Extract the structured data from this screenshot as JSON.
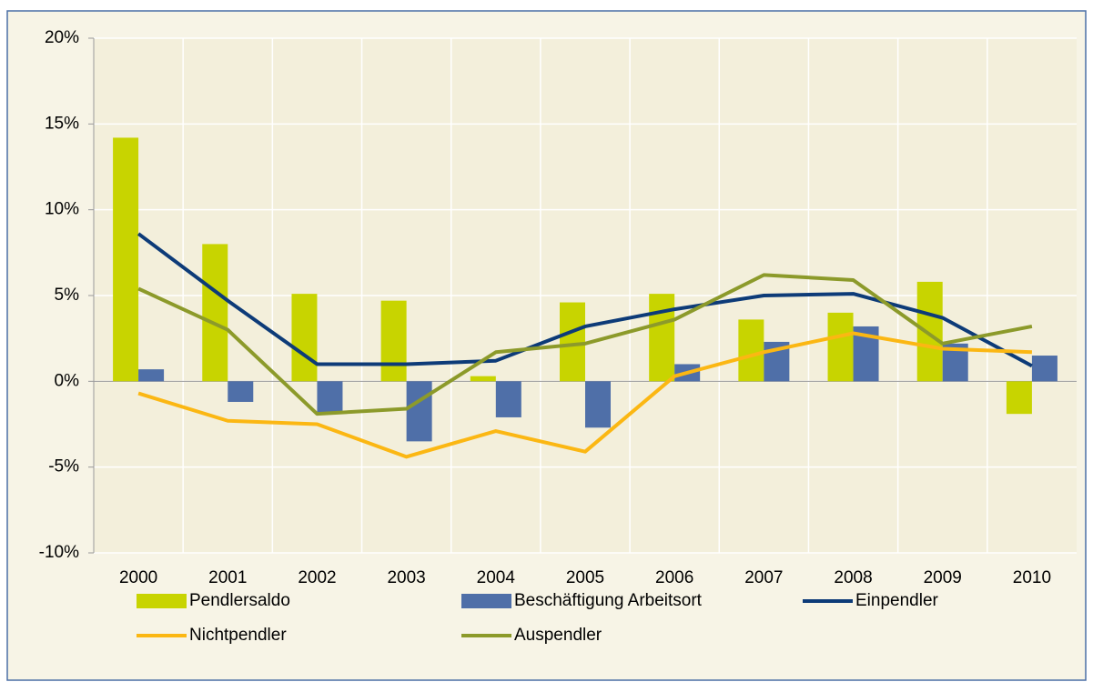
{
  "chart_data": {
    "type": "combo",
    "categories": [
      "2000",
      "2001",
      "2002",
      "2003",
      "2004",
      "2005",
      "2006",
      "2007",
      "2008",
      "2009",
      "2010"
    ],
    "series": [
      {
        "name": "Pendlersaldo",
        "type": "bar",
        "color": "#c8d400",
        "values": [
          14.2,
          8.0,
          5.1,
          4.7,
          0.3,
          4.6,
          5.1,
          3.6,
          4.0,
          5.8,
          -1.9
        ]
      },
      {
        "name": "Beschäftigung Arbeitsort",
        "type": "bar",
        "color": "#4f6fa8",
        "values": [
          0.7,
          -1.2,
          -1.8,
          -3.5,
          -2.1,
          -2.7,
          1.0,
          2.3,
          3.2,
          2.2,
          1.5
        ]
      },
      {
        "name": "Einpendler",
        "type": "line",
        "color": "#0d3b78",
        "values": [
          8.6,
          4.7,
          1.0,
          1.0,
          1.2,
          3.2,
          4.2,
          5.0,
          5.1,
          3.7,
          0.9
        ]
      },
      {
        "name": "Nichtpendler",
        "type": "line",
        "color": "#fbb713",
        "values": [
          -0.7,
          -2.3,
          -2.5,
          -4.4,
          -2.9,
          -4.1,
          0.3,
          1.7,
          2.8,
          1.9,
          1.7
        ]
      },
      {
        "name": "Auspendler",
        "type": "line",
        "color": "#8c9a2a",
        "values": [
          5.4,
          3.0,
          -1.9,
          -1.6,
          1.7,
          2.2,
          3.6,
          6.2,
          5.9,
          2.2,
          3.2
        ]
      }
    ],
    "ylim": [
      -10,
      20
    ],
    "yticks": [
      {
        "value": -10,
        "label": "-10%"
      },
      {
        "value": -5,
        "label": "-5%"
      },
      {
        "value": 0,
        "label": "0%"
      },
      {
        "value": 5,
        "label": "5%"
      },
      {
        "value": 10,
        "label": "10%"
      },
      {
        "value": 15,
        "label": "15%"
      },
      {
        "value": 20,
        "label": "20%"
      }
    ],
    "grid": true
  }
}
